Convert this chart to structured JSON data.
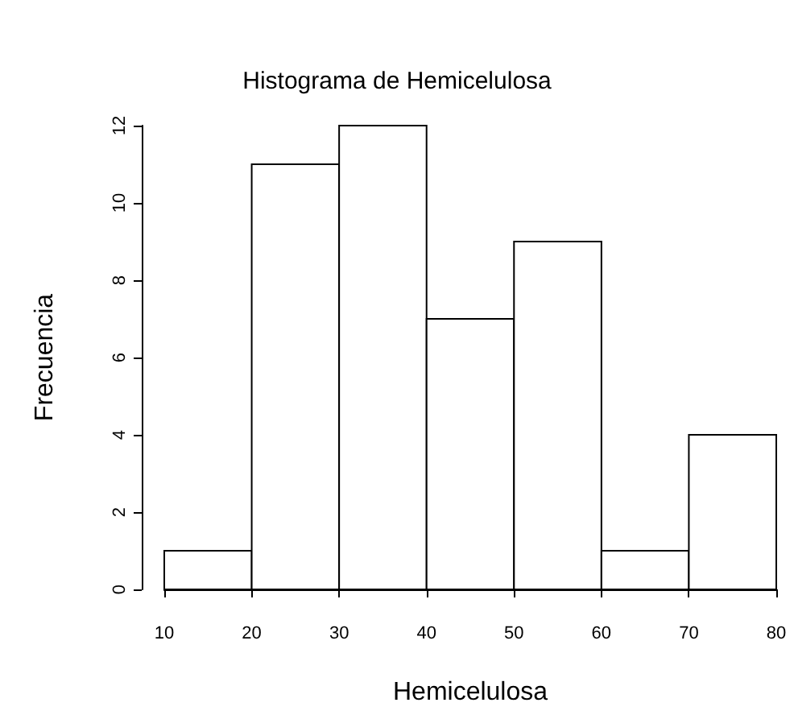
{
  "chart_data": {
    "type": "histogram",
    "title": "Histograma de Hemicelulosa",
    "xlabel": "Hemicelulosa",
    "ylabel": "Frecuencia",
    "bins": [
      10,
      20,
      30,
      40,
      50,
      60,
      70,
      80
    ],
    "values": [
      1,
      11,
      12,
      7,
      9,
      1,
      4
    ],
    "color": "#ffffff",
    "xlim": [
      10,
      80
    ],
    "xticks": [
      10,
      20,
      30,
      40,
      50,
      60,
      70,
      80
    ],
    "ylim": [
      0,
      12
    ],
    "yticks": [
      0,
      2,
      4,
      6,
      8,
      10,
      12
    ]
  }
}
